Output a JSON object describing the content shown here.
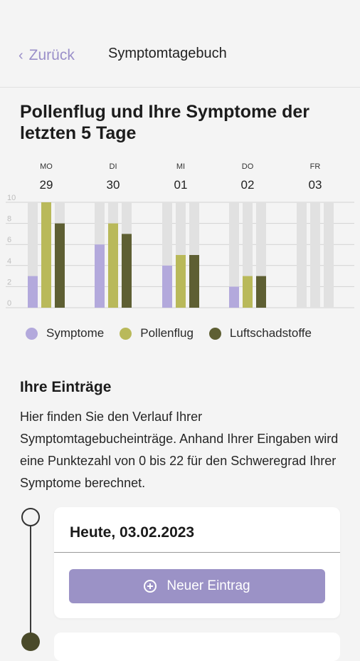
{
  "header": {
    "back_label": "Zurück",
    "title": "Symptomtagebuch"
  },
  "section_title": "Pollenflug und Ihre Symptome der letzten 5 Tage",
  "chart_data": {
    "type": "bar",
    "categories": [
      {
        "day": "MO",
        "date": "29"
      },
      {
        "day": "DI",
        "date": "30"
      },
      {
        "day": "MI",
        "date": "01"
      },
      {
        "day": "DO",
        "date": "02"
      },
      {
        "day": "FR",
        "date": "03"
      }
    ],
    "y_ticks": [
      "0",
      "2",
      "4",
      "6",
      "8",
      "10"
    ],
    "ylim": [
      0,
      10
    ],
    "max_value": 10,
    "series": [
      {
        "name": "Symptome",
        "color": "#b3a9dc",
        "values": [
          3,
          6,
          4,
          2,
          null
        ]
      },
      {
        "name": "Pollenflug",
        "color": "#b9b95a",
        "values": [
          10,
          8,
          5,
          3,
          null
        ]
      },
      {
        "name": "Luftschadstoffe",
        "color": "#5e5f33",
        "values": [
          8,
          7,
          5,
          3,
          null
        ]
      }
    ],
    "track_color": "#e1e1e1",
    "grid": true
  },
  "entries": {
    "title": "Ihre Einträge",
    "description": "Hier finden Sie den Verlauf Ihrer Symptomtagebucheinträge.  Anhand Ihrer Eingaben wird eine Punktezahl von 0 bis 22 für den Schweregrad Ihrer Symptome berechnet."
  },
  "card": {
    "date": "Heute, 03.02.2023",
    "button_label": "Neuer Eintrag"
  },
  "colors": {
    "accent": "#9b92c6",
    "back_link": "#9a8fc9"
  }
}
